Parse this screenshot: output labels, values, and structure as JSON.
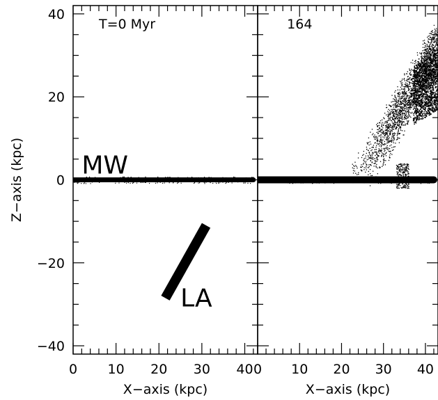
{
  "chart_data": [
    {
      "type": "scatter",
      "panel": "left",
      "title": "",
      "xlabel": "X−axis (kpc)",
      "ylabel": "Z−axis (kpc)",
      "xlim": [
        0,
        43
      ],
      "ylim": [
        -42,
        42
      ],
      "xticks": [
        0,
        10,
        20,
        30,
        40
      ],
      "yticks": [
        -40,
        -20,
        0,
        20,
        40
      ],
      "xtick_labels": [
        "0",
        "10",
        "20",
        "30",
        "40"
      ],
      "ytick_labels": [
        "−40",
        "−20",
        "0",
        "20",
        "40"
      ],
      "grid": false,
      "annotations": [
        {
          "id": "time",
          "text": "T=0 Myr",
          "x": 6,
          "y": 36.5
        },
        {
          "id": "mw",
          "text": "MW",
          "x": 2,
          "y": 1.5
        },
        {
          "id": "la",
          "text": "LA",
          "x": 25,
          "y": -30.5
        }
      ],
      "series": [
        {
          "name": "",
          "kind": "disk",
          "x": [
            0,
            42
          ],
          "z": [
            0,
            0
          ]
        },
        {
          "name": "",
          "kind": "satellite",
          "x": [
            21.5,
            31
          ],
          "z": [
            -28.5,
            -11
          ]
        }
      ]
    },
    {
      "type": "scatter",
      "panel": "right",
      "title": "",
      "xlabel": "X−axis (kpc)",
      "ylabel": "",
      "xlim": [
        0,
        43
      ],
      "ylim": [
        -42,
        42
      ],
      "xticks": [
        0,
        10,
        20,
        30,
        40
      ],
      "yticks": [
        -40,
        -20,
        0,
        20,
        40
      ],
      "xtick_labels": [
        "0",
        "10",
        "20",
        "30",
        "40"
      ],
      "ytick_labels": [],
      "grid": false,
      "annotations": [
        {
          "id": "time",
          "text": "164",
          "x": 7,
          "y": 36.5
        }
      ],
      "series": [
        {
          "name": "",
          "kind": "disk",
          "x": [
            0,
            42
          ],
          "z": [
            0,
            0
          ]
        },
        {
          "name": "",
          "kind": "tidal-stream",
          "x": [
            24,
            43
          ],
          "z": [
            0,
            32
          ]
        }
      ]
    }
  ]
}
